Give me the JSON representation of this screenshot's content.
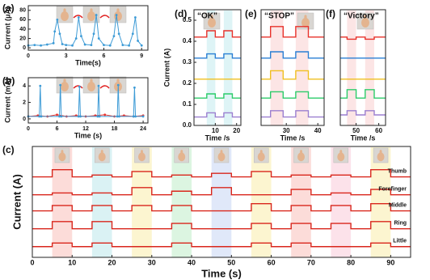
{
  "chart_data": [
    {
      "type": "line",
      "label": "(a)",
      "xlabel": "Time(s)",
      "ylabel": "Current (μA)",
      "xlim": [
        0,
        9.5
      ],
      "ylim": [
        -5,
        90
      ],
      "xticks": [
        0,
        3,
        6,
        9
      ],
      "yticks": [
        0,
        20,
        40,
        60,
        80
      ],
      "markers": true,
      "series": [
        {
          "color": "#3d9bd6",
          "x": [
            0,
            0.5,
            1,
            1.5,
            2,
            2.1,
            2.3,
            2.5,
            2.7,
            3,
            3.5,
            3.8,
            4.0,
            4.2,
            4.5,
            5,
            5.2,
            5.4,
            5.6,
            6,
            6.5,
            6.8,
            7.0,
            7.2,
            7.5,
            8,
            8.3,
            8.5,
            8.7,
            9
          ],
          "values": [
            5,
            6,
            5,
            7,
            10,
            35,
            60,
            30,
            8,
            6,
            5,
            20,
            65,
            25,
            7,
            6,
            30,
            70,
            20,
            6,
            5,
            25,
            70,
            30,
            6,
            5,
            30,
            65,
            15,
            5
          ]
        }
      ]
    },
    {
      "type": "line",
      "label": "(b)",
      "xlabel": "Time (s)",
      "ylabel": "Current (mA)",
      "xlim": [
        0,
        25
      ],
      "ylim": [
        -0.5,
        5
      ],
      "xticks": [
        0,
        6,
        12,
        18,
        24
      ],
      "yticks": [
        0,
        2,
        4
      ],
      "markers": true,
      "series": [
        {
          "color": "#e8312a",
          "x": [
            0,
            2,
            4,
            6,
            8,
            10,
            12,
            14,
            16,
            18,
            20,
            22,
            24
          ],
          "values": [
            0.3,
            0.4,
            0.3,
            0.5,
            0.3,
            0.4,
            0.3,
            0.4,
            0.5,
            0.3,
            0.4,
            0.3,
            0.4
          ]
        },
        {
          "color": "#3d9bd6",
          "x": [
            0,
            2.3,
            2.5,
            2.7,
            6.5,
            6.7,
            6.9,
            10.5,
            10.7,
            10.9,
            14.5,
            14.7,
            14.9,
            18.6,
            18.8,
            19,
            22,
            22.2,
            22.4,
            24
          ],
          "values": [
            0.3,
            0.3,
            4,
            0.3,
            0.3,
            4.1,
            0.3,
            0.3,
            3.9,
            0.3,
            0.3,
            4,
            0.3,
            0.3,
            4.1,
            0.3,
            0.3,
            3.8,
            0.3,
            0.3
          ]
        }
      ]
    },
    {
      "type": "line",
      "label": "(c)",
      "xlabel": "Time (s)",
      "ylabel": "Current (A)",
      "drawstyle": "steps-post",
      "xlim": [
        0,
        95
      ],
      "ylim": [
        0,
        6.2
      ],
      "xticks": [
        0,
        10,
        20,
        30,
        40,
        50,
        60,
        70,
        80,
        90
      ],
      "spans": [
        [
          5,
          10
        ],
        [
          15,
          20
        ],
        [
          25,
          30
        ],
        [
          35,
          40
        ],
        [
          45,
          50
        ],
        [
          55,
          60
        ],
        [
          65,
          70
        ],
        [
          75,
          80
        ],
        [
          85,
          90
        ]
      ],
      "span_colors": [
        "#fbd6d2",
        "#d4f0f2",
        "#fbf3c8",
        "#d6f3dc",
        "#dbe4f8",
        "#fbf3c8",
        "#fbd6d2",
        "#fbdde6",
        "#fbf3c8"
      ],
      "x": [
        0,
        5,
        10,
        15,
        20,
        25,
        30,
        35,
        40,
        45,
        50,
        55,
        60,
        65,
        70,
        75,
        80,
        85,
        90,
        95
      ],
      "series": [
        {
          "name": "Thumb",
          "color": "#d9261c",
          "values": [
            4.5,
            4.9,
            4.5,
            4.6,
            4.5,
            4.8,
            4.5,
            4.6,
            4.5,
            4.7,
            4.5,
            4.8,
            4.5,
            4.6,
            4.5,
            4.6,
            4.5,
            4.9,
            4.5,
            4.5
          ]
        },
        {
          "name": "Forefinger",
          "color": "#d9261c",
          "values": [
            3.5,
            3.6,
            3.5,
            3.6,
            3.5,
            3.9,
            3.5,
            3.7,
            3.5,
            3.9,
            3.5,
            3.5,
            3.5,
            3.8,
            3.5,
            3.6,
            3.5,
            3.8,
            3.5,
            3.5
          ]
        },
        {
          "name": "Middle",
          "color": "#d9261c",
          "values": [
            2.6,
            2.9,
            2.6,
            2.9,
            2.6,
            2.9,
            2.6,
            2.9,
            2.6,
            2.6,
            2.6,
            3.0,
            2.6,
            2.9,
            2.6,
            2.9,
            2.6,
            3.0,
            2.6,
            2.6
          ]
        },
        {
          "name": "Ring",
          "color": "#d9261c",
          "values": [
            1.6,
            2.0,
            1.6,
            2.0,
            1.6,
            1.6,
            1.6,
            1.9,
            1.6,
            1.6,
            1.6,
            1.9,
            1.6,
            1.9,
            1.6,
            1.9,
            1.6,
            2.0,
            1.6,
            1.6
          ]
        },
        {
          "name": "Little",
          "color": "#d9261c",
          "values": [
            0.6,
            0.8,
            0.6,
            0.8,
            0.6,
            0.6,
            0.6,
            0.8,
            0.6,
            0.6,
            0.6,
            0.8,
            0.6,
            0.8,
            0.6,
            0.6,
            0.6,
            0.8,
            0.6,
            0.6
          ]
        }
      ]
    },
    {
      "type": "line",
      "label": "(d)",
      "title": "“OK”",
      "xlabel": "Time /s",
      "ylabel": "Current (A)",
      "drawstyle": "steps-post",
      "xlim": [
        0,
        22
      ],
      "ylim": [
        0,
        0.55
      ],
      "xticks": [
        10,
        20
      ],
      "yticks": [
        {
          "value": 0,
          "label": "0.0"
        },
        0.1,
        0.2,
        0.3,
        0.4,
        0.5
      ],
      "spans": [
        [
          6,
          10
        ],
        [
          14,
          18
        ]
      ],
      "span_colors": [
        "#d8f2f4",
        "#d8f2f4"
      ],
      "x": [
        0,
        6,
        10,
        14,
        18,
        22
      ],
      "series": [
        {
          "color": "#e8312a",
          "values": [
            0.42,
            0.45,
            0.42,
            0.45,
            0.42,
            0.42
          ]
        },
        {
          "color": "#2a7fd4",
          "values": [
            0.32,
            0.34,
            0.32,
            0.34,
            0.32,
            0.32
          ]
        },
        {
          "color": "#f0c020",
          "values": [
            0.22,
            0.22,
            0.22,
            0.22,
            0.22,
            0.22
          ]
        },
        {
          "color": "#2ccc6a",
          "values": [
            0.13,
            0.15,
            0.13,
            0.15,
            0.13,
            0.13
          ]
        },
        {
          "color": "#9b7fd0",
          "values": [
            0.04,
            0.06,
            0.04,
            0.06,
            0.04,
            0.04
          ]
        }
      ]
    },
    {
      "type": "line",
      "label": "(e)",
      "title": "“STOP”",
      "xlabel": "Time /s",
      "drawstyle": "steps-post",
      "xlim": [
        22,
        42
      ],
      "ylim": [
        0,
        0.55
      ],
      "xticks": [
        30,
        40
      ],
      "spans": [
        [
          25,
          29
        ],
        [
          33,
          37
        ]
      ],
      "span_colors": [
        "#fbe0e0",
        "#fbe0e0"
      ],
      "x": [
        22,
        25,
        29,
        33,
        37,
        42
      ],
      "series": [
        {
          "color": "#e8312a",
          "values": [
            0.42,
            0.47,
            0.42,
            0.47,
            0.42,
            0.42
          ]
        },
        {
          "color": "#2a7fd4",
          "values": [
            0.32,
            0.35,
            0.32,
            0.35,
            0.32,
            0.32
          ]
        },
        {
          "color": "#f0c020",
          "values": [
            0.22,
            0.26,
            0.22,
            0.26,
            0.22,
            0.22
          ]
        },
        {
          "color": "#2ccc6a",
          "values": [
            0.13,
            0.16,
            0.13,
            0.16,
            0.13,
            0.13
          ]
        },
        {
          "color": "#9b7fd0",
          "values": [
            0.04,
            0.07,
            0.04,
            0.07,
            0.04,
            0.04
          ]
        }
      ]
    },
    {
      "type": "line",
      "label": "(f)",
      "title": "“Victory”",
      "xlabel": "Time /s",
      "drawstyle": "steps-post",
      "xlim": [
        43,
        63
      ],
      "ylim": [
        0,
        0.55
      ],
      "xticks": [
        50,
        60
      ],
      "spans": [
        [
          46,
          50
        ],
        [
          54,
          58
        ]
      ],
      "span_colors": [
        "#fbe0e0",
        "#fbe0e0"
      ],
      "x": [
        43,
        46,
        50,
        54,
        58,
        63
      ],
      "series": [
        {
          "color": "#e8312a",
          "values": [
            0.42,
            0.41,
            0.42,
            0.41,
            0.42,
            0.42
          ]
        },
        {
          "color": "#2a7fd4",
          "values": [
            0.32,
            0.32,
            0.32,
            0.32,
            0.32,
            0.32
          ]
        },
        {
          "color": "#f0c020",
          "values": [
            0.22,
            0.22,
            0.22,
            0.22,
            0.22,
            0.22
          ]
        },
        {
          "color": "#2ccc6a",
          "values": [
            0.13,
            0.17,
            0.13,
            0.17,
            0.13,
            0.13
          ]
        },
        {
          "color": "#9b7fd0",
          "values": [
            0.05,
            0.07,
            0.05,
            0.07,
            0.05,
            0.05
          ]
        }
      ]
    }
  ]
}
